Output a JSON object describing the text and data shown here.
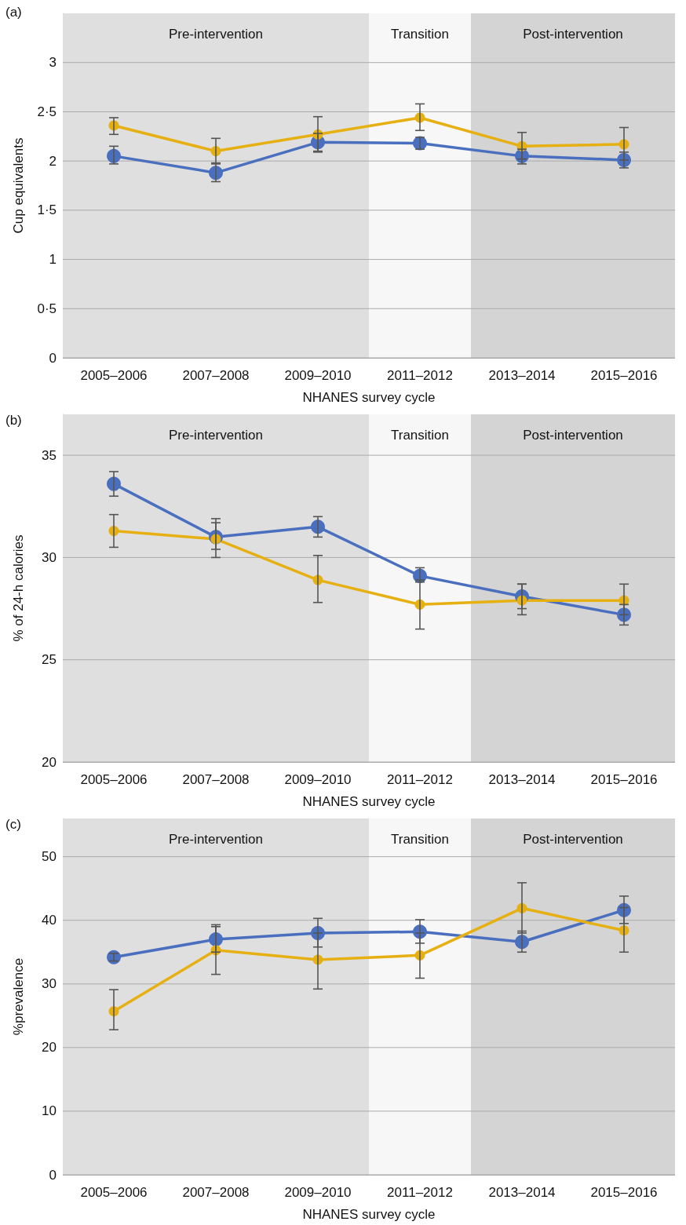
{
  "chart_data": [
    {
      "type": "line",
      "title": "(a)",
      "xlabel": "NHANES survey cycle",
      "ylabel": "Cup equivalents",
      "categories": [
        "2005–2006",
        "2007–2008",
        "2009–2010",
        "2011–2012",
        "2013–2014",
        "2015–2016"
      ],
      "series": [
        {
          "color": "#4a6fbf",
          "values": [
            2.05,
            1.88,
            2.19,
            2.18,
            2.05,
            2.01
          ],
          "errors": [
            [
              1.97,
              2.15
            ],
            [
              1.79,
              1.97
            ],
            [
              2.1,
              2.28
            ],
            [
              2.12,
              2.24
            ],
            [
              1.97,
              2.12
            ],
            [
              1.93,
              2.09
            ]
          ]
        },
        {
          "color": "#e6b012",
          "values": [
            2.36,
            2.1,
            2.27,
            2.44,
            2.15,
            2.17
          ],
          "errors": [
            [
              2.27,
              2.44
            ],
            [
              1.98,
              2.23
            ],
            [
              2.09,
              2.45
            ],
            [
              2.31,
              2.58
            ],
            [
              2.02,
              2.29
            ],
            [
              2.01,
              2.34
            ]
          ]
        }
      ],
      "ylim": [
        0,
        3.5
      ],
      "yticks": [
        0,
        {
          "value": 0.5,
          "label": "0·5"
        },
        1,
        {
          "value": 1.5,
          "label": "1·5"
        },
        2,
        {
          "value": 2.5,
          "label": "2·5"
        },
        3
      ],
      "bands": [
        {
          "axis": "x",
          "from": "2005–2006",
          "to": "2009–2010",
          "label": "Pre-intervention",
          "color": "#e0dfe0"
        },
        {
          "axis": "x",
          "from": "2011–2012",
          "to": "2011–2012",
          "label": "Transition",
          "color": "#f7f7f7"
        },
        {
          "axis": "x",
          "from": "2013–2014",
          "to": "2015–2016",
          "label": "Post-intervention",
          "color": "#d4d4d4"
        }
      ],
      "grid": "y",
      "marker": "circle",
      "line_style": "solid"
    },
    {
      "type": "line",
      "title": "(b)",
      "xlabel": "NHANES survey cycle",
      "ylabel": "% of 24-h calories",
      "categories": [
        "2005–2006",
        "2007–2008",
        "2009–2010",
        "2011–2012",
        "2013–2014",
        "2015–2016"
      ],
      "series": [
        {
          "color": "#4a6fbf",
          "values": [
            33.6,
            31.0,
            31.5,
            29.1,
            28.1,
            27.2
          ],
          "errors": [
            [
              33.0,
              34.2
            ],
            [
              30.4,
              31.7
            ],
            [
              31.0,
              32.0
            ],
            [
              28.8,
              29.5
            ],
            [
              27.5,
              28.7
            ],
            [
              26.7,
              27.7
            ]
          ]
        },
        {
          "color": "#e6b012",
          "values": [
            31.3,
            30.9,
            28.9,
            27.7,
            27.9,
            27.9
          ],
          "errors": [
            [
              30.5,
              32.1
            ],
            [
              30.0,
              31.9
            ],
            [
              27.8,
              30.1
            ],
            [
              26.5,
              28.9
            ],
            [
              27.2,
              28.7
            ],
            [
              27.2,
              28.7
            ]
          ]
        }
      ],
      "ylim": [
        20,
        37
      ],
      "yticks": [
        20,
        25,
        30,
        35
      ],
      "bands": [
        {
          "axis": "x",
          "from": "2005–2006",
          "to": "2009–2010",
          "label": "Pre-intervention",
          "color": "#e0dfe0"
        },
        {
          "axis": "x",
          "from": "2011–2012",
          "to": "2011–2012",
          "label": "Transition",
          "color": "#f7f7f7"
        },
        {
          "axis": "x",
          "from": "2013–2014",
          "to": "2015–2016",
          "label": "Post-intervention",
          "color": "#d4d4d4"
        }
      ],
      "grid": "y",
      "marker": "circle",
      "line_style": "solid"
    },
    {
      "type": "line",
      "title": "(c)",
      "xlabel": "NHANES survey cycle",
      "ylabel": "%prevalence",
      "categories": [
        "2005–2006",
        "2007–2008",
        "2009–2010",
        "2011–2012",
        "2013–2014",
        "2015–2016"
      ],
      "series": [
        {
          "color": "#4a6fbf",
          "values": [
            34.2,
            37.0,
            38.0,
            38.2,
            36.6,
            41.6
          ],
          "errors": [
            [
              33.6,
              34.8
            ],
            [
              35.0,
              39.3
            ],
            [
              35.8,
              40.3
            ],
            [
              36.4,
              40.1
            ],
            [
              35.0,
              38.3
            ],
            [
              39.5,
              43.8
            ]
          ]
        },
        {
          "color": "#e6b012",
          "values": [
            25.7,
            35.3,
            33.8,
            34.5,
            41.9,
            38.4
          ],
          "errors": [
            [
              22.8,
              29.1
            ],
            [
              31.5,
              39.0
            ],
            [
              29.2,
              38.0
            ],
            [
              30.9,
              38.0
            ],
            [
              38.0,
              45.9
            ],
            [
              35.0,
              42.0
            ]
          ]
        }
      ],
      "ylim": [
        0,
        56
      ],
      "yticks": [
        0,
        10,
        20,
        30,
        40,
        50
      ],
      "bands": [
        {
          "axis": "x",
          "from": "2005–2006",
          "to": "2009–2010",
          "label": "Pre-intervention",
          "color": "#e0dfe0"
        },
        {
          "axis": "x",
          "from": "2011–2012",
          "to": "2011–2012",
          "label": "Transition",
          "color": "#f7f7f7"
        },
        {
          "axis": "x",
          "from": "2013–2014",
          "to": "2015–2016",
          "label": "Post-intervention",
          "color": "#d4d4d4"
        }
      ],
      "grid": "y",
      "marker": "circle",
      "line_style": "solid"
    }
  ]
}
